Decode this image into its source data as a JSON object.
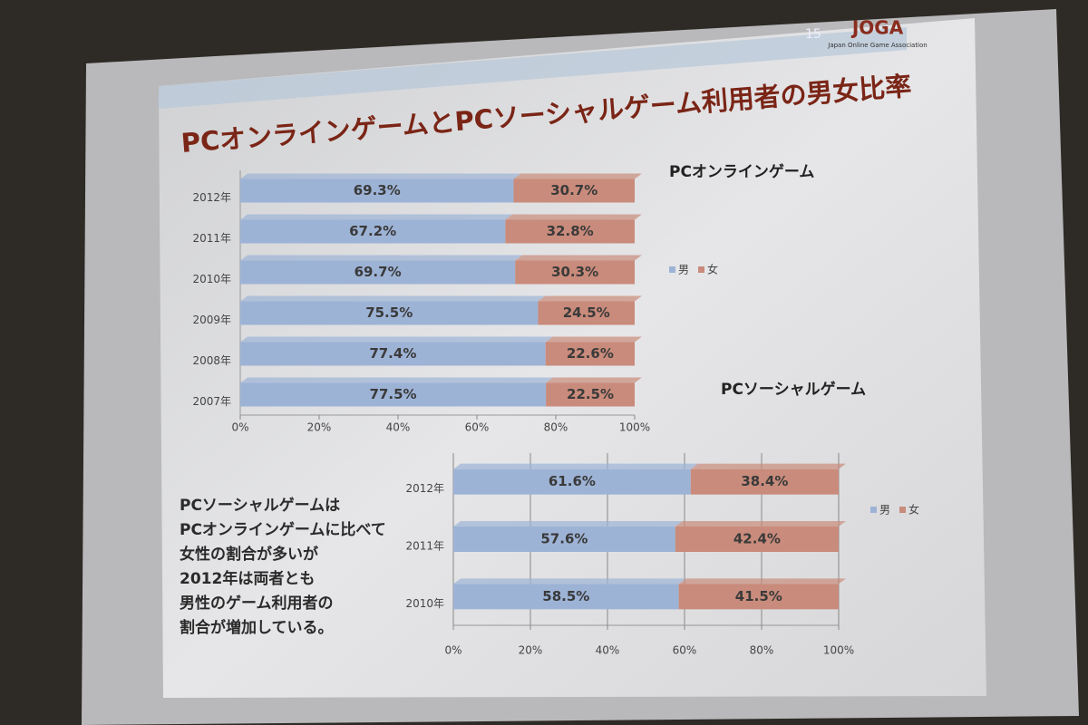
{
  "slide": {
    "title": "PCオンラインゲームとPCソーシャルゲーム利用者の男女比率",
    "page_number": "15",
    "logo": "JOGA",
    "logo_subtitle": "Japan Online Game Association",
    "note": [
      "PCソーシャルゲームは",
      "PCオンラインゲームに比べて",
      "女性の割合が多いが",
      "2012年は両者とも",
      "男性のゲーム利用者の",
      "割合が増加している。"
    ]
  },
  "chart_data": [
    {
      "type": "bar",
      "orientation": "horizontal",
      "stacked": true,
      "title": "PCオンラインゲーム",
      "categories": [
        "2012年",
        "2011年",
        "2010年",
        "2009年",
        "2008年",
        "2007年"
      ],
      "series": [
        {
          "name": "男",
          "color": "#9db3d6",
          "values": [
            69.3,
            67.2,
            69.7,
            75.5,
            77.4,
            77.5
          ],
          "value_labels": [
            "69.3%",
            "67.2%",
            "69.7%",
            "75.5%",
            "77.4%",
            "77.5%"
          ]
        },
        {
          "name": "女",
          "color": "#c98b7b",
          "values": [
            30.7,
            32.8,
            30.3,
            24.5,
            22.6,
            22.5
          ],
          "value_labels": [
            "30.7%",
            "32.8%",
            "30.3%",
            "24.5%",
            "22.6%",
            "22.5%"
          ]
        }
      ],
      "xlim": [
        0,
        100
      ],
      "xticks": [
        {
          "value": 0,
          "label": "0%"
        },
        {
          "value": 20,
          "label": "20%"
        },
        {
          "value": 40,
          "label": "40%"
        },
        {
          "value": 60,
          "label": "60%"
        },
        {
          "value": 80,
          "label": "80%"
        },
        {
          "value": 100,
          "label": "100%"
        }
      ],
      "grid": false,
      "legend": "right"
    },
    {
      "type": "bar",
      "orientation": "horizontal",
      "stacked": true,
      "title": "PCソーシャルゲーム",
      "categories": [
        "2012年",
        "2011年",
        "2010年"
      ],
      "series": [
        {
          "name": "男",
          "color": "#9db3d6",
          "values": [
            61.6,
            57.6,
            58.5
          ],
          "value_labels": [
            "61.6%",
            "57.6%",
            "58.5%"
          ]
        },
        {
          "name": "女",
          "color": "#c98b7b",
          "values": [
            38.4,
            42.4,
            41.5
          ],
          "value_labels": [
            "38.4%",
            "42.4%",
            "41.5%"
          ]
        }
      ],
      "xlim": [
        0,
        100
      ],
      "xticks": [
        {
          "value": 0,
          "label": "0%"
        },
        {
          "value": 20,
          "label": "20%"
        },
        {
          "value": 40,
          "label": "40%"
        },
        {
          "value": 60,
          "label": "60%"
        },
        {
          "value": 80,
          "label": "80%"
        },
        {
          "value": 100,
          "label": "100%"
        }
      ],
      "grid": true,
      "legend": "right"
    }
  ]
}
